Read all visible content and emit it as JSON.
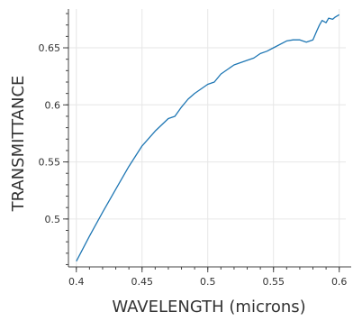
{
  "chart_data": {
    "type": "line",
    "title": "",
    "xlabel": "WAVELENGTH (microns)",
    "ylabel": "TRANSMITTANCE",
    "xlim": [
      0.394,
      0.605
    ],
    "ylim": [
      0.458,
      0.684
    ],
    "grid": true,
    "line_color": "#1f77b4",
    "x_ticks": [
      {
        "value": 0.4,
        "label": "0.4"
      },
      {
        "value": 0.45,
        "label": "0.45"
      },
      {
        "value": 0.5,
        "label": "0.5"
      },
      {
        "value": 0.55,
        "label": "0.55"
      },
      {
        "value": 0.6,
        "label": "0.6"
      }
    ],
    "y_ticks": [
      {
        "value": 0.5,
        "label": "0.5"
      },
      {
        "value": 0.55,
        "label": "0.55"
      },
      {
        "value": 0.6,
        "label": "0.6"
      },
      {
        "value": 0.65,
        "label": "0.65"
      }
    ],
    "series": [
      {
        "x": [
          0.4,
          0.41,
          0.42,
          0.43,
          0.44,
          0.45,
          0.46,
          0.47,
          0.475,
          0.48,
          0.485,
          0.49,
          0.5,
          0.505,
          0.51,
          0.52,
          0.53,
          0.535,
          0.54,
          0.545,
          0.55,
          0.56,
          0.565,
          0.57,
          0.575,
          0.58,
          0.583,
          0.585,
          0.587,
          0.59,
          0.592,
          0.595,
          0.597,
          0.6
        ],
        "y": [
          0.463,
          0.485,
          0.506,
          0.526,
          0.546,
          0.564,
          0.577,
          0.588,
          0.59,
          0.598,
          0.605,
          0.61,
          0.618,
          0.62,
          0.627,
          0.635,
          0.639,
          0.641,
          0.645,
          0.647,
          0.65,
          0.656,
          0.657,
          0.657,
          0.655,
          0.657,
          0.665,
          0.67,
          0.674,
          0.672,
          0.676,
          0.675,
          0.677,
          0.679
        ]
      }
    ]
  }
}
